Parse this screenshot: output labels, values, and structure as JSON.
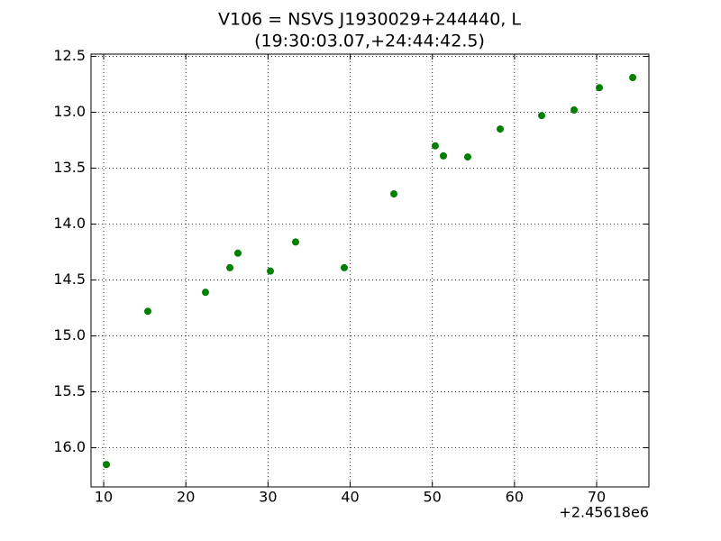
{
  "chart_data": {
    "type": "scatter",
    "title": "V106 = NSVS J1930029+244440, L",
    "subtitle": "(19:30:03.07,+24:44:42.5)",
    "x_offset_label": "+2.45618e6",
    "color": "#007f00",
    "grid": true,
    "y_inverted": true,
    "x": [
      10.33,
      15.37,
      22.39,
      25.36,
      26.34,
      30.29,
      33.36,
      39.28,
      45.32,
      50.36,
      51.35,
      54.31,
      58.26,
      63.31,
      67.26,
      70.33,
      74.39
    ],
    "values": [
      16.15,
      14.78,
      14.61,
      14.39,
      14.26,
      14.42,
      14.16,
      14.39,
      13.73,
      13.3,
      13.39,
      13.4,
      13.15,
      13.03,
      12.98,
      12.78,
      12.69
    ],
    "xlim": [
      8.46,
      76.36
    ],
    "ylim": [
      16.35,
      12.48
    ],
    "xticks": [
      10,
      20,
      30,
      40,
      50,
      60,
      70
    ],
    "yticks": [
      12.5,
      {
        "value": 13,
        "label": "13.0"
      },
      13.5,
      {
        "value": 14,
        "label": "14.0"
      },
      14.5,
      {
        "value": 15,
        "label": "15.0"
      },
      15.5,
      {
        "value": 16,
        "label": "16.0"
      }
    ]
  }
}
